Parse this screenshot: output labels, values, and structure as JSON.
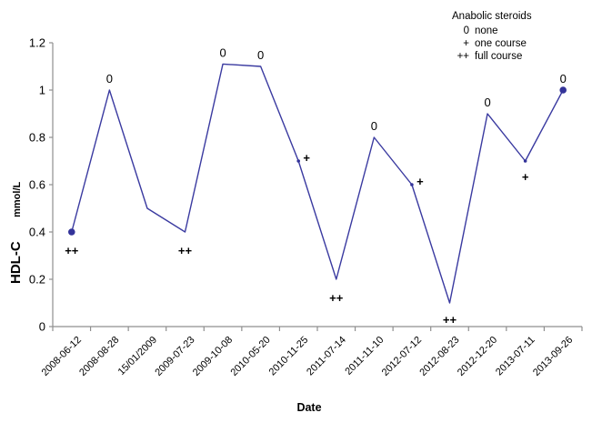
{
  "chart_data": {
    "type": "line",
    "title": "",
    "x_title": "Date",
    "y_title": "HDL-C",
    "y_unit": "mmol/L",
    "ylim": [
      0,
      1.2
    ],
    "y_ticks": [
      "0",
      "0.2",
      "0.4",
      "0.6",
      "0.8",
      "1",
      "1.2"
    ],
    "y_tick_values": [
      0,
      0.2,
      0.4,
      0.6,
      0.8,
      1,
      1.2
    ],
    "categories": [
      "2008-06-12",
      "2008-08-28",
      "15/01/2009",
      "2009-07-23",
      "2009-10-08",
      "2010-05-20",
      "2010-11-25",
      "2011-07-14",
      "2011-11-10",
      "2012-07-12",
      "2012-08-23",
      "2012-12-20",
      "2013-07-11",
      "2013-09-26"
    ],
    "series": [
      {
        "name": "HDL-C",
        "values": [
          0.4,
          1.0,
          0.5,
          0.4,
          1.11,
          1.1,
          0.7,
          0.2,
          0.8,
          0.6,
          0.1,
          0.9,
          0.7,
          1.0
        ]
      }
    ],
    "point_annotations": [
      "++",
      "0",
      "",
      "++",
      "0",
      "0",
      "+",
      "++",
      "0",
      "+",
      "++",
      "0",
      "+",
      "0"
    ],
    "annotation_positions": [
      "below",
      "above",
      "none",
      "below",
      "above",
      "above",
      "beside",
      "below",
      "above",
      "beside",
      "below",
      "above",
      "below",
      "above"
    ],
    "point_markers": [
      "large",
      "none",
      "none",
      "none",
      "none",
      "none",
      "dot",
      "none",
      "none",
      "dot",
      "none",
      "none",
      "dot",
      "large"
    ],
    "legend": {
      "title": "Anabolic steroids",
      "position": "top-right",
      "items": [
        {
          "symbol": "0",
          "label": "none"
        },
        {
          "symbol": "+",
          "label": "one course"
        },
        {
          "symbol": "++",
          "label": "full course"
        }
      ]
    },
    "grid": false,
    "colors": {
      "line": "#3A3AA0",
      "marker": "#333399",
      "axis": "#8f8f8f",
      "text": "#000000"
    }
  }
}
